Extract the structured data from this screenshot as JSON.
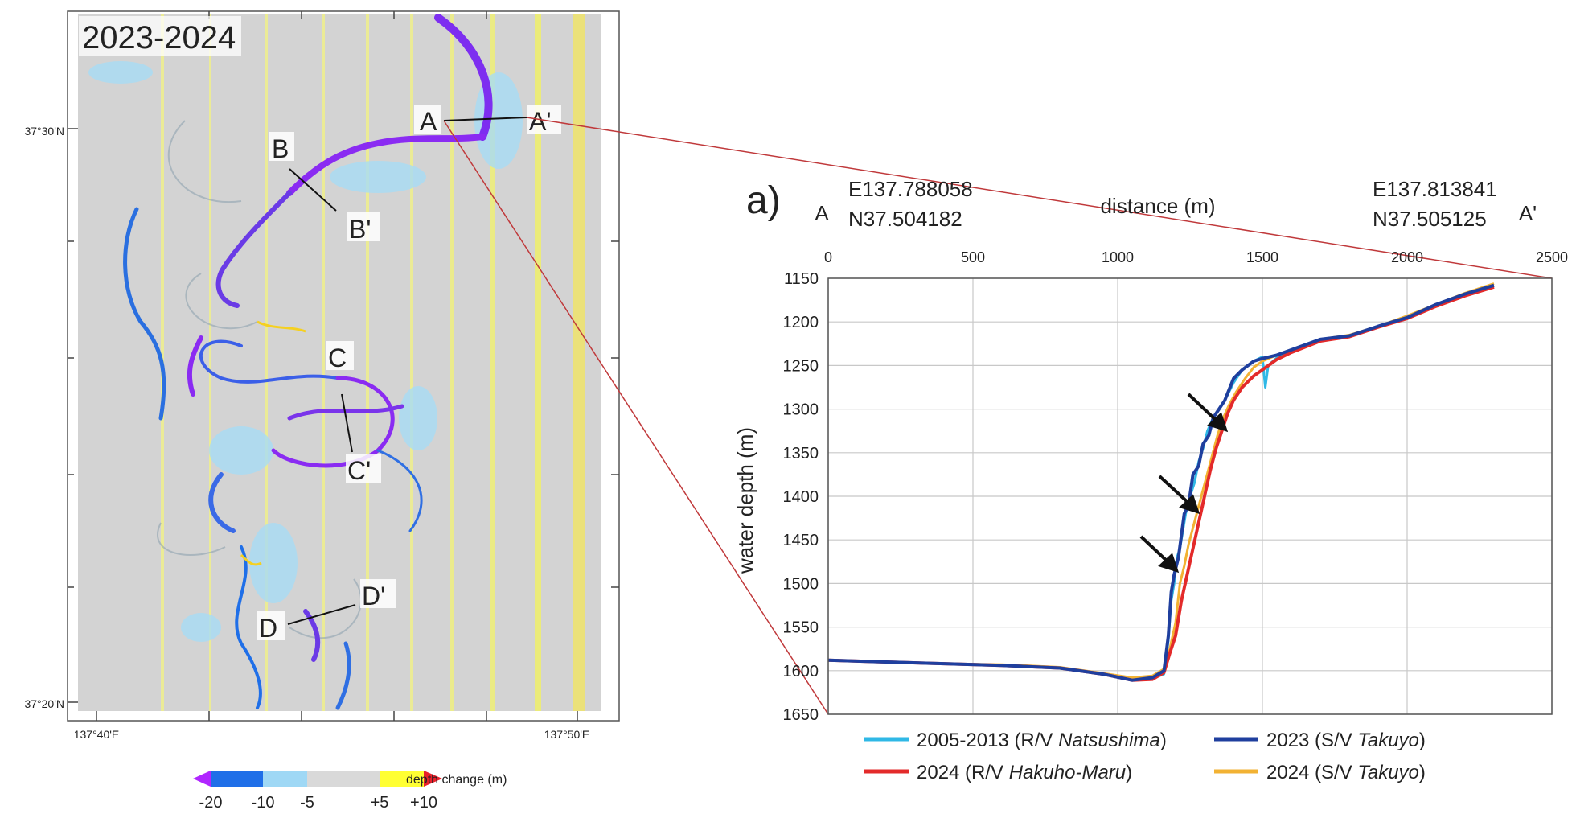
{
  "map": {
    "period_label": "2023-2024",
    "lat_labels": [
      "37°30'N",
      "37°20'N"
    ],
    "lon_labels": [
      "137°40'E",
      "137°50'E"
    ],
    "profile_labels": {
      "A": "A",
      "A_prime": "A'",
      "B": "B",
      "B_prime": "B'",
      "C": "C",
      "C_prime": "C'",
      "D": "D",
      "D_prime": "D'"
    },
    "colorbar": {
      "title": "depth change (m)",
      "tick_labels": [
        "-20",
        "-10",
        "-5",
        "+5",
        "+10"
      ],
      "colors": [
        "#b026ff",
        "#1f6fe8",
        "#9fd8f5",
        "#d9d9d9",
        "#ffff33",
        "#e8202a"
      ]
    }
  },
  "profile": {
    "panel_label": "a)",
    "start_label": "A",
    "end_label": "A'",
    "start_coord": [
      "E137.788058",
      "N37.504182"
    ],
    "end_coord": [
      "E137.813841",
      "N37.505125"
    ]
  },
  "chart_data": {
    "type": "line",
    "xlabel": "distance (m)",
    "ylabel": "water depth (m)",
    "xlim": [
      0,
      2500
    ],
    "ylim": [
      1150,
      1650
    ],
    "y_inverted": true,
    "x_ticks": [
      0,
      500,
      1000,
      1500,
      2000,
      2500
    ],
    "y_ticks": [
      1150,
      1200,
      1250,
      1300,
      1350,
      1400,
      1450,
      1500,
      1550,
      1600,
      1650
    ],
    "grid": true,
    "legend_position": "bottom",
    "series": [
      {
        "name": "2005-2013 (R/V Natsushima)",
        "color": "#2fb8e6",
        "points": [
          [
            0,
            1588
          ],
          [
            200,
            1590
          ],
          [
            400,
            1592
          ],
          [
            600,
            1594
          ],
          [
            800,
            1597
          ],
          [
            950,
            1604
          ],
          [
            1050,
            1611
          ],
          [
            1120,
            1609
          ],
          [
            1160,
            1604
          ],
          [
            1175,
            1565
          ],
          [
            1185,
            1520
          ],
          [
            1195,
            1500
          ],
          [
            1205,
            1470
          ],
          [
            1215,
            1460
          ],
          [
            1225,
            1440
          ],
          [
            1235,
            1420
          ],
          [
            1250,
            1400
          ],
          [
            1265,
            1385
          ],
          [
            1280,
            1360
          ],
          [
            1295,
            1345
          ],
          [
            1310,
            1325
          ],
          [
            1330,
            1310
          ],
          [
            1350,
            1300
          ],
          [
            1370,
            1290
          ],
          [
            1400,
            1270
          ],
          [
            1430,
            1255
          ],
          [
            1470,
            1245
          ],
          [
            1500,
            1240
          ],
          [
            1510,
            1275
          ],
          [
            1520,
            1250
          ],
          [
            1560,
            1238
          ],
          [
            1600,
            1232
          ],
          [
            1700,
            1220
          ],
          [
            1800,
            1216
          ],
          [
            1900,
            1205
          ],
          [
            2000,
            1195
          ],
          [
            2100,
            1180
          ],
          [
            2200,
            1168
          ],
          [
            2300,
            1158
          ]
        ]
      },
      {
        "name": "2023 (S/V Takuyo)",
        "color": "#1f3f9e",
        "points": [
          [
            0,
            1588
          ],
          [
            200,
            1590
          ],
          [
            400,
            1592
          ],
          [
            600,
            1594
          ],
          [
            800,
            1597
          ],
          [
            950,
            1604
          ],
          [
            1050,
            1611
          ],
          [
            1120,
            1608
          ],
          [
            1160,
            1600
          ],
          [
            1175,
            1560
          ],
          [
            1185,
            1510
          ],
          [
            1195,
            1490
          ],
          [
            1210,
            1470
          ],
          [
            1230,
            1420
          ],
          [
            1245,
            1410
          ],
          [
            1260,
            1375
          ],
          [
            1280,
            1365
          ],
          [
            1295,
            1340
          ],
          [
            1315,
            1330
          ],
          [
            1330,
            1310
          ],
          [
            1350,
            1300
          ],
          [
            1370,
            1290
          ],
          [
            1400,
            1265
          ],
          [
            1430,
            1255
          ],
          [
            1470,
            1245
          ],
          [
            1500,
            1242
          ],
          [
            1550,
            1238
          ],
          [
            1600,
            1232
          ],
          [
            1700,
            1220
          ],
          [
            1800,
            1216
          ],
          [
            1900,
            1205
          ],
          [
            2000,
            1195
          ],
          [
            2100,
            1180
          ],
          [
            2200,
            1168
          ],
          [
            2300,
            1158
          ]
        ]
      },
      {
        "name": "2024 (R/V Hakuho-Maru)",
        "color": "#e32a2a",
        "points": [
          [
            0,
            1588
          ],
          [
            200,
            1590
          ],
          [
            400,
            1592
          ],
          [
            600,
            1594
          ],
          [
            800,
            1597
          ],
          [
            950,
            1604
          ],
          [
            1050,
            1611
          ],
          [
            1120,
            1610
          ],
          [
            1160,
            1602
          ],
          [
            1180,
            1580
          ],
          [
            1200,
            1560
          ],
          [
            1220,
            1520
          ],
          [
            1240,
            1490
          ],
          [
            1260,
            1460
          ],
          [
            1280,
            1430
          ],
          [
            1300,
            1400
          ],
          [
            1320,
            1370
          ],
          [
            1340,
            1345
          ],
          [
            1360,
            1325
          ],
          [
            1380,
            1305
          ],
          [
            1400,
            1290
          ],
          [
            1430,
            1275
          ],
          [
            1470,
            1262
          ],
          [
            1500,
            1255
          ],
          [
            1550,
            1243
          ],
          [
            1600,
            1235
          ],
          [
            1700,
            1222
          ],
          [
            1800,
            1217
          ],
          [
            1900,
            1206
          ],
          [
            2000,
            1196
          ],
          [
            2100,
            1182
          ],
          [
            2200,
            1170
          ],
          [
            2300,
            1160
          ]
        ]
      },
      {
        "name": "2024 (S/V Takuyo)",
        "color": "#f2b233",
        "points": [
          [
            0,
            1588
          ],
          [
            200,
            1590
          ],
          [
            400,
            1592
          ],
          [
            600,
            1593
          ],
          [
            800,
            1596
          ],
          [
            950,
            1603
          ],
          [
            1050,
            1608
          ],
          [
            1120,
            1606
          ],
          [
            1160,
            1598
          ],
          [
            1180,
            1575
          ],
          [
            1200,
            1545
          ],
          [
            1215,
            1500
          ],
          [
            1230,
            1480
          ],
          [
            1245,
            1455
          ],
          [
            1265,
            1430
          ],
          [
            1285,
            1405
          ],
          [
            1305,
            1380
          ],
          [
            1325,
            1355
          ],
          [
            1345,
            1330
          ],
          [
            1365,
            1310
          ],
          [
            1385,
            1295
          ],
          [
            1410,
            1280
          ],
          [
            1440,
            1265
          ],
          [
            1470,
            1252
          ],
          [
            1500,
            1245
          ],
          [
            1550,
            1238
          ],
          [
            1600,
            1232
          ],
          [
            1700,
            1220
          ],
          [
            1800,
            1215
          ],
          [
            1900,
            1205
          ],
          [
            2000,
            1193
          ],
          [
            2100,
            1180
          ],
          [
            2200,
            1167
          ],
          [
            2300,
            1156
          ]
        ]
      }
    ],
    "legend_entries": [
      {
        "text": "2005-2013 (R/V ",
        "italic": "Natsushima",
        "end": ")"
      },
      {
        "text": "2023 (S/V ",
        "italic": "Takuyo",
        "end": ")"
      },
      {
        "text": "2024 (R/V ",
        "italic": "Hakuho-Maru",
        "end": ")"
      },
      {
        "text": "2024 (S/V ",
        "italic": "Takuyo",
        "end": ")"
      }
    ]
  }
}
